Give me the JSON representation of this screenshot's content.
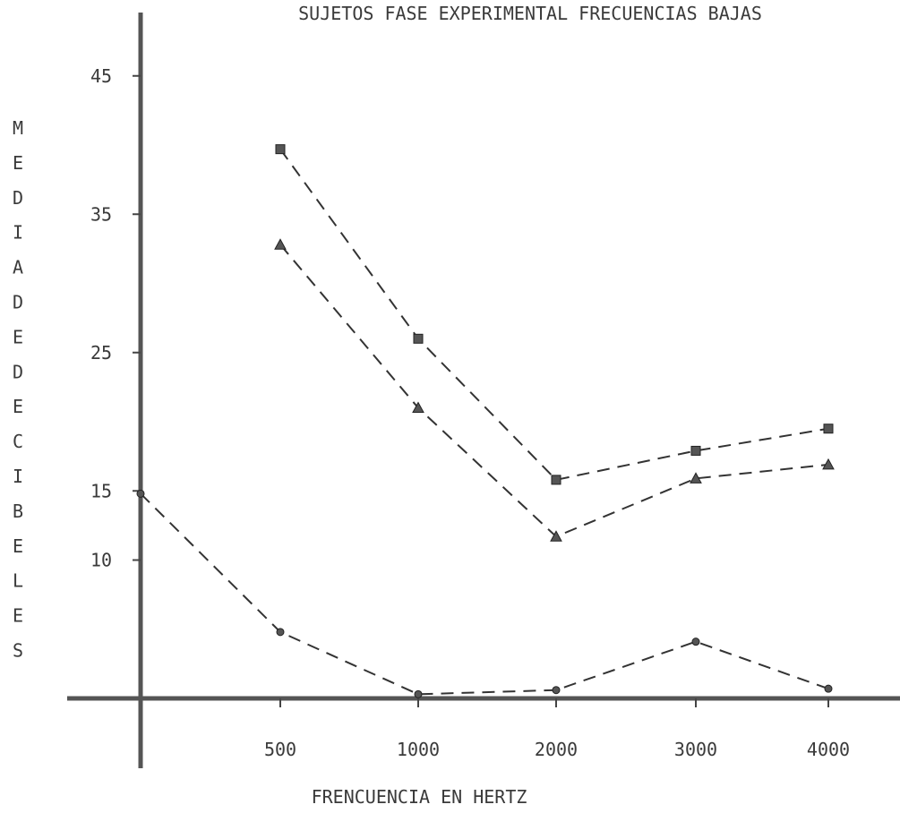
{
  "chart_data": {
    "type": "line",
    "title": "SUJETOS FASE EXPERIMENTAL FRECUENCIAS BAJAS",
    "xlabel": "FRENCUENCIA EN HERTZ",
    "ylabel": "MEDIA DE DECIBELES",
    "ylabel_letters": [
      "M",
      "E",
      "D",
      "I",
      "A",
      "D",
      "E",
      "D",
      "E",
      "C",
      "I",
      "B",
      "E",
      "L",
      "E",
      "S"
    ],
    "categories": [
      "500",
      "1000",
      "2000",
      "3000",
      "4000"
    ],
    "yticks": [
      "45",
      "35",
      "25",
      "15",
      "10"
    ],
    "ytick_values": [
      45,
      35,
      25,
      15,
      10
    ],
    "ylim": [
      0,
      47
    ],
    "grid": false,
    "series": [
      {
        "marker": "square",
        "x": [
          1,
          2,
          3,
          4,
          5
        ],
        "values": [
          39.7,
          26.0,
          15.8,
          17.9,
          19.5
        ]
      },
      {
        "marker": "triangle",
        "x": [
          1,
          2,
          3,
          4,
          5
        ],
        "values": [
          32.8,
          21.0,
          11.7,
          15.9,
          16.9
        ]
      },
      {
        "marker": "circle",
        "x": [
          0,
          1,
          2,
          3,
          4,
          5
        ],
        "values": [
          14.8,
          4.8,
          0.3,
          0.6,
          4.1,
          0.7
        ]
      }
    ]
  }
}
